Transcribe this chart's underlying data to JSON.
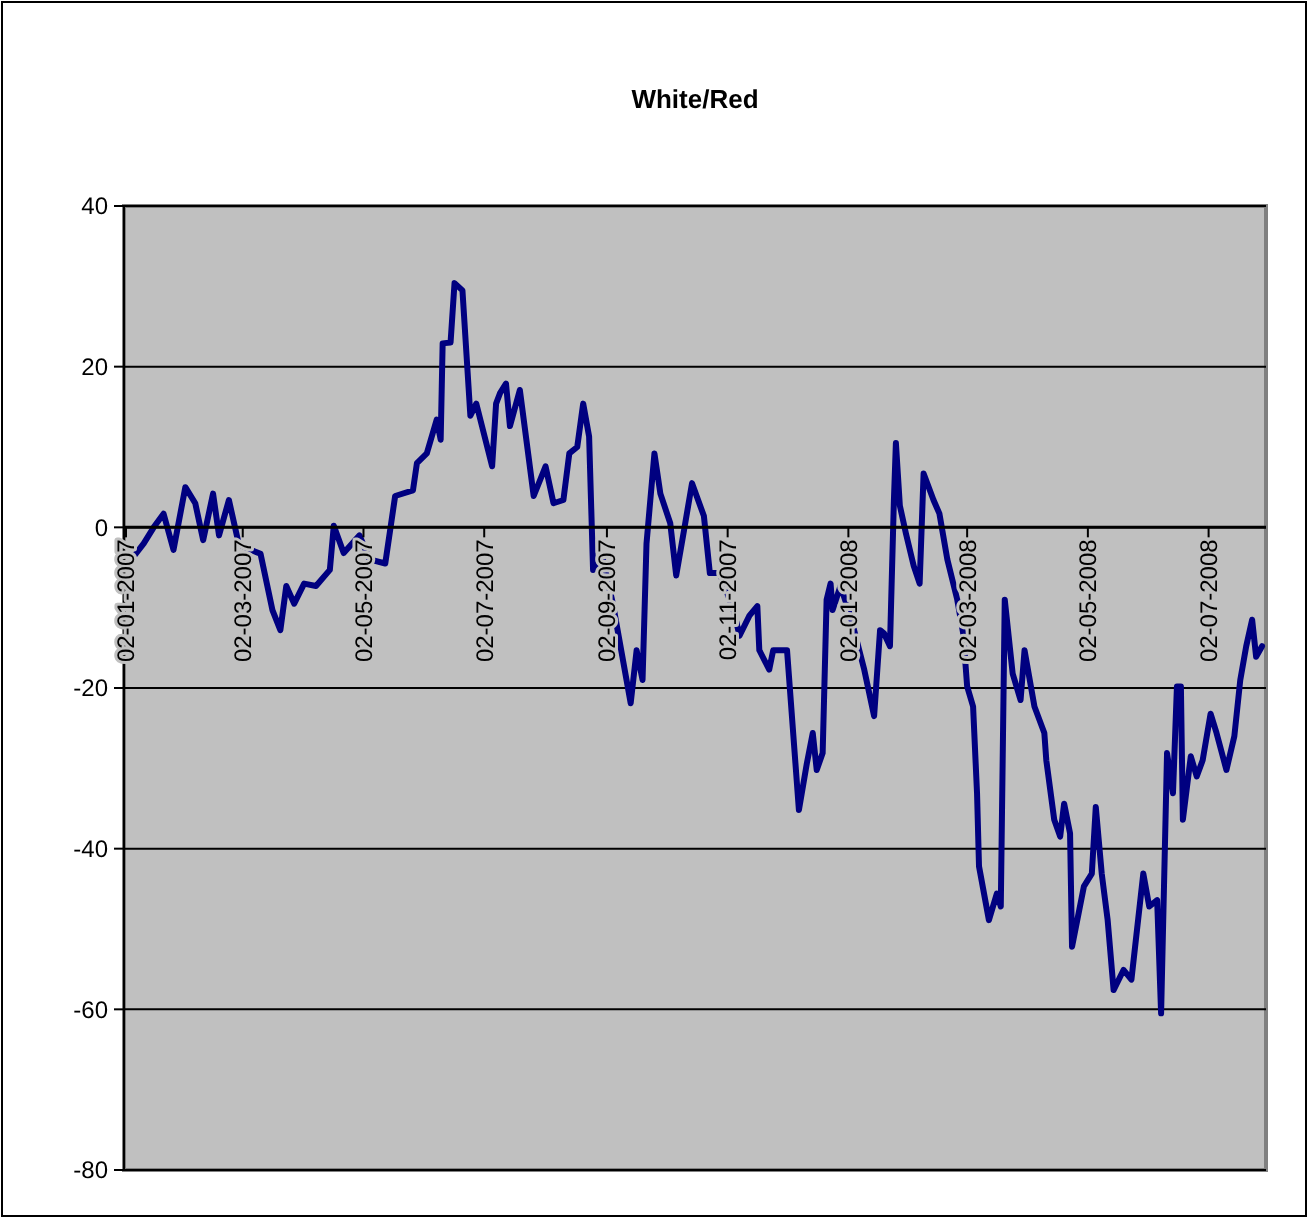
{
  "chart_data": {
    "type": "line",
    "title": "White/Red",
    "x": [
      "2007-01-06",
      "2007-01-11",
      "2007-01-16",
      "2007-01-21",
      "2007-01-26",
      "2007-02-01",
      "2007-02-06",
      "2007-02-10",
      "2007-02-15",
      "2007-02-18",
      "2007-02-23",
      "2007-02-28",
      "2007-03-06",
      "2007-03-11",
      "2007-03-17",
      "2007-03-21",
      "2007-03-24",
      "2007-03-28",
      "2007-04-02",
      "2007-04-08",
      "2007-04-15",
      "2007-04-17",
      "2007-04-22",
      "2007-04-30",
      "2007-05-05",
      "2007-05-13",
      "2007-05-18",
      "2007-05-27",
      "2007-05-29",
      "2007-06-03",
      "2007-06-08",
      "2007-06-10",
      "2007-06-11",
      "2007-06-15",
      "2007-06-17",
      "2007-06-21",
      "2007-06-25",
      "2007-06-28",
      "2007-07-06",
      "2007-07-08",
      "2007-07-10",
      "2007-07-13",
      "2007-07-15",
      "2007-07-20",
      "2007-07-27",
      "2007-08-02",
      "2007-08-06",
      "2007-08-11",
      "2007-08-14",
      "2007-08-18",
      "2007-08-21",
      "2007-08-24",
      "2007-08-26",
      "2007-08-31",
      "2007-09-05",
      "2007-09-14",
      "2007-09-17",
      "2007-09-20",
      "2007-09-22",
      "2007-09-26",
      "2007-09-29",
      "2007-10-04",
      "2007-10-07",
      "2007-10-11",
      "2007-10-15",
      "2007-10-21",
      "2007-10-24",
      "2007-10-29",
      "2007-11-05",
      "2007-11-08",
      "2007-11-13",
      "2007-11-17",
      "2007-11-18",
      "2007-11-23",
      "2007-11-25",
      "2007-12-02",
      "2007-12-08",
      "2007-12-12",
      "2007-12-15",
      "2007-12-17",
      "2007-12-20",
      "2007-12-22",
      "2007-12-24",
      "2007-12-25",
      "2007-12-29",
      "2008-01-03",
      "2008-01-10",
      "2008-01-15",
      "2008-01-18",
      "2008-01-20",
      "2008-01-23",
      "2008-01-25",
      "2008-01-26",
      "2008-01-28",
      "2008-01-31",
      "2008-02-04",
      "2008-02-07",
      "2008-02-09",
      "2008-02-14",
      "2008-02-17",
      "2008-02-21",
      "2008-02-26",
      "2008-02-29",
      "2008-03-02",
      "2008-03-05",
      "2008-03-07",
      "2008-03-08",
      "2008-03-13",
      "2008-03-17",
      "2008-03-19",
      "2008-03-21",
      "2008-03-25",
      "2008-03-29",
      "2008-03-31",
      "2008-04-05",
      "2008-04-10",
      "2008-04-11",
      "2008-04-15",
      "2008-04-18",
      "2008-04-20",
      "2008-04-23",
      "2008-04-24",
      "2008-04-30",
      "2008-05-04",
      "2008-05-06",
      "2008-05-09",
      "2008-05-12",
      "2008-05-15",
      "2008-05-20",
      "2008-05-24",
      "2008-05-30",
      "2008-06-02",
      "2008-06-06",
      "2008-06-08",
      "2008-06-11",
      "2008-06-14",
      "2008-06-16",
      "2008-06-18",
      "2008-06-19",
      "2008-06-23",
      "2008-06-26",
      "2008-06-29",
      "2008-07-03",
      "2008-07-06",
      "2008-07-11",
      "2008-07-15",
      "2008-07-18",
      "2008-07-21",
      "2008-07-24",
      "2008-07-26",
      "2008-07-29"
    ],
    "series": [
      {
        "color": "#000080",
        "values": [
          -3.6,
          -2,
          0,
          1.7,
          -2.8,
          5,
          3,
          -1.6,
          4.2,
          -1,
          3.4,
          -2.1,
          -2.8,
          -3.3,
          -10.3,
          -12.8,
          -7.3,
          -9.5,
          -7,
          -7.3,
          -5.3,
          0.2,
          -3.2,
          -1,
          -4,
          -4.5,
          3.9,
          4.6,
          8,
          9.2,
          13.4,
          10.9,
          22.9,
          23,
          30.4,
          29.5,
          13.9,
          15.4,
          7.6,
          15.4,
          16.7,
          17.9,
          12.6,
          17.1,
          3.9,
          7.6,
          3,
          3.4,
          9.2,
          10,
          15.4,
          11.3,
          -5.3,
          -4,
          -9.5,
          -21.9,
          -15.3,
          -19,
          -2,
          9.2,
          4.2,
          0.5,
          -6,
          -0.3,
          5.5,
          1.4,
          -5.7,
          -5.7,
          -10.3,
          -13.5,
          -11,
          -9.8,
          -15.3,
          -17.7,
          -15.3,
          -15.3,
          -35.2,
          -29.4,
          -25.6,
          -30.2,
          -28.1,
          -9,
          -7,
          -10.3,
          -7.3,
          -11,
          -17.7,
          -23.5,
          -12.8,
          -13.2,
          -14.8,
          3.4,
          10.5,
          2.7,
          -0.7,
          -4.8,
          -7,
          6.7,
          3.4,
          1.7,
          -4,
          -9,
          -13.2,
          -19.8,
          -22.3,
          -33.1,
          -42.2,
          -48.9,
          -45.6,
          -47.2,
          -9,
          -18.2,
          -21.5,
          -15.3,
          -22.3,
          -25.6,
          -29,
          -36.4,
          -38.5,
          -34.4,
          -38.1,
          -52.2,
          -44.7,
          -43.1,
          -34.8,
          -43.1,
          -48.9,
          -57.6,
          -55.1,
          -56.3,
          -43.1,
          -47.2,
          -46.4,
          -60.5,
          -28.1,
          -33.1,
          -19.8,
          -19.8,
          -36.4,
          -28.5,
          -31,
          -29,
          -23.2,
          -25.6,
          -30.2,
          -26,
          -19,
          -14.8,
          -11.5,
          -16.1,
          -14.8
        ]
      }
    ],
    "xlim": [
      "2007-01-01",
      "2008-07-31"
    ],
    "xticks": [
      {
        "value": "2007-01-02",
        "label": "02-01-2007"
      },
      {
        "value": "2007-03-02",
        "label": "02-03-2007"
      },
      {
        "value": "2007-05-02",
        "label": "02-05-2007"
      },
      {
        "value": "2007-07-02",
        "label": "02-07-2007"
      },
      {
        "value": "2007-09-02",
        "label": "02-09-2007"
      },
      {
        "value": "2007-11-02",
        "label": "02-11-2007"
      },
      {
        "value": "2008-01-02",
        "label": "02-01-2008"
      },
      {
        "value": "2008-03-02",
        "label": "02-03-2008"
      },
      {
        "value": "2008-05-02",
        "label": "02-05-2008"
      },
      {
        "value": "2008-07-02",
        "label": "02-07-2008"
      }
    ],
    "ylim": [
      -80,
      40
    ],
    "yticks": [
      -80,
      -60,
      -40,
      -20,
      0,
      20,
      40
    ],
    "grid": "y",
    "marker": "none",
    "line_style": "solid"
  }
}
